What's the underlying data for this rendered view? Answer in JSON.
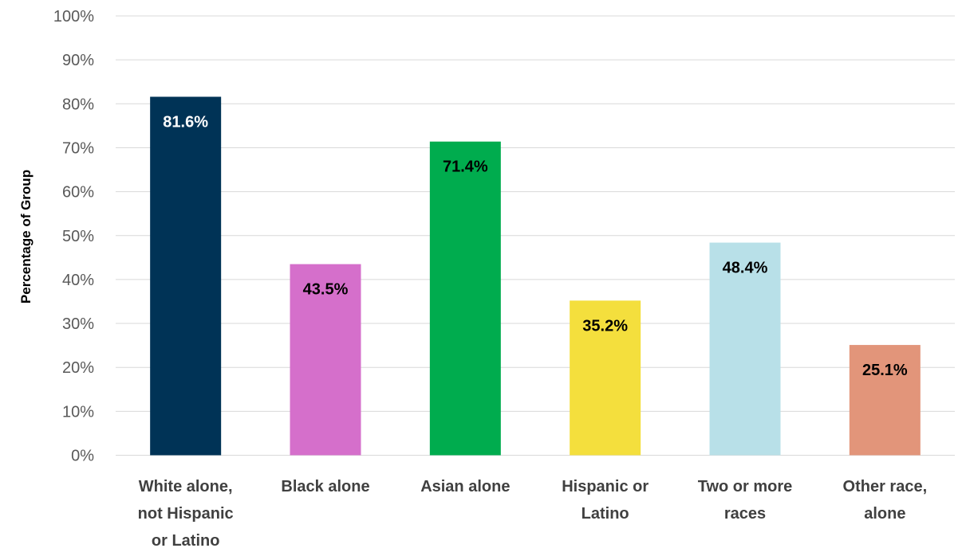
{
  "chart_data": {
    "type": "bar",
    "title": "",
    "xlabel": "",
    "ylabel": "Percentage of Group",
    "ylim": [
      0,
      100
    ],
    "y_ticks": [
      0,
      10,
      20,
      30,
      40,
      50,
      60,
      70,
      80,
      90,
      100
    ],
    "y_tick_suffix": "%",
    "grid": true,
    "legend": "none",
    "categories": [
      [
        "White alone,",
        "not Hispanic",
        "or Latino"
      ],
      [
        "Black alone"
      ],
      [
        "Asian alone"
      ],
      [
        "Hispanic or",
        "Latino"
      ],
      [
        "Two or more",
        "races"
      ],
      [
        "Other race,",
        "alone"
      ]
    ],
    "values": [
      81.6,
      43.5,
      71.4,
      35.2,
      48.4,
      25.1
    ],
    "data_labels": [
      "81.6%",
      "43.5%",
      "71.4%",
      "35.2%",
      "48.4%",
      "25.1%"
    ],
    "colors": [
      "#003356",
      "#d56fcb",
      "#00ac4e",
      "#f4df3d",
      "#b8e0e8",
      "#e2957a"
    ],
    "label_colors": [
      "#ffffff",
      "#000000",
      "#000000",
      "#000000",
      "#000000",
      "#000000"
    ]
  }
}
